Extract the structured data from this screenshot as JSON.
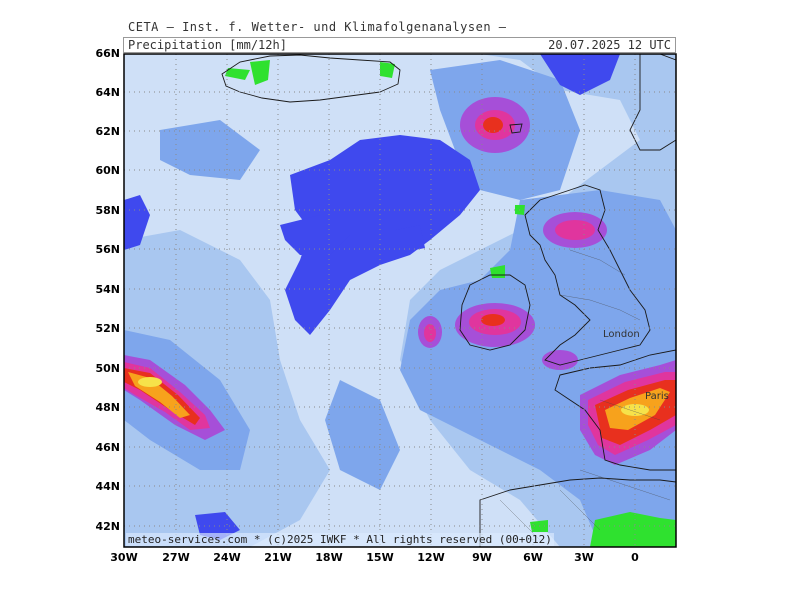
{
  "header": {
    "institute": "CETA — Inst. f. Wetter- und Klimafolgenanalysen —",
    "parameter": "Precipitation [mm/12h]",
    "valid_time": "20.07.2025 12 UTC"
  },
  "footer": {
    "credit": "meteo-services.com * (c)2025 IWKF * All rights reserved (00+012)"
  },
  "axes": {
    "lat_labels": [
      "66N",
      "64N",
      "62N",
      "60N",
      "58N",
      "56N",
      "54N",
      "52N",
      "50N",
      "48N",
      "46N",
      "44N",
      "42N"
    ],
    "lon_labels": [
      "30W",
      "27W",
      "24W",
      "21W",
      "18W",
      "15W",
      "12W",
      "9W",
      "6W",
      "3W",
      "0"
    ]
  },
  "cities": [
    {
      "name": "London"
    },
    {
      "name": "Paris"
    }
  ],
  "colors": {
    "background": "#cfe0f7",
    "light_blue": "#a9c7f0",
    "medium_blue": "#7ea6ec",
    "royal_blue": "#3f49ee",
    "purple": "#a64fd8",
    "magenta": "#e0359e",
    "red": "#e8301e",
    "orange": "#f7a21c",
    "yellow": "#f6e24a",
    "green": "#2fe12f"
  }
}
